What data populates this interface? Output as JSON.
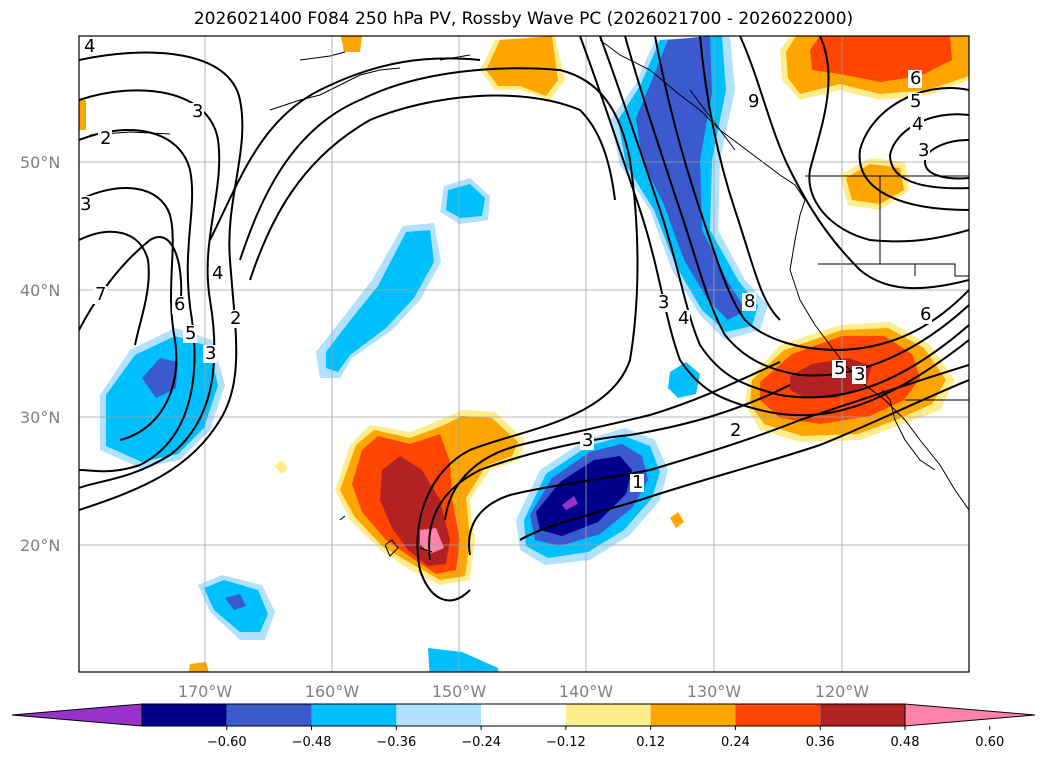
{
  "title": "2026021400 F084 250 hPa PV, Rossby Wave PC (2026021700 - 2026022000)",
  "lat_labels": [
    "50°N",
    "40°N",
    "30°N",
    "20°N"
  ],
  "lon_labels": [
    "170°W",
    "160°W",
    "150°W",
    "140°W",
    "130°W",
    "120°W"
  ],
  "colorbar": {
    "tick_labels": [
      "−0.60",
      "−0.48",
      "−0.36",
      "−0.24",
      "−0.12",
      "0.12",
      "0.24",
      "0.36",
      "0.48",
      "0.60"
    ],
    "colors": [
      "#9932CC",
      "#00008B",
      "#3A5ACD",
      "#00BFFF",
      "#B0E2FF",
      "#FFFFFF",
      "#FFEC8B",
      "#FFA500",
      "#FF4500",
      "#B22222",
      "#FF82AB"
    ]
  },
  "contour_labels": [
    "4",
    "3",
    "2",
    "3",
    "7",
    "6",
    "5",
    "3",
    "4",
    "2",
    "3",
    "4",
    "3",
    "2",
    "1",
    "8",
    "9",
    "6",
    "5",
    "4",
    "3",
    "6",
    "5",
    "3"
  ]
}
